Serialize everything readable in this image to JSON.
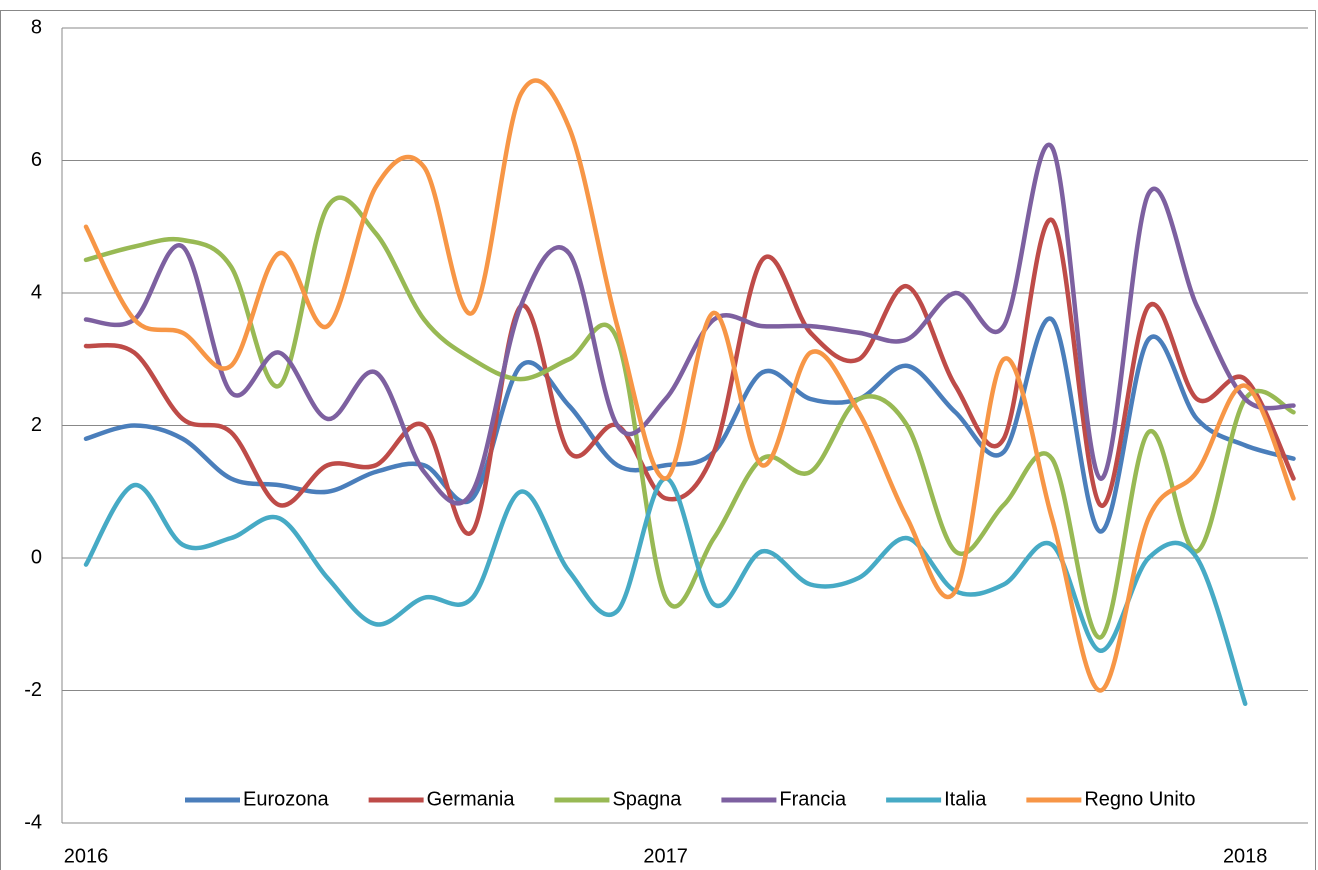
{
  "chart_data": {
    "type": "line",
    "categories": [
      "2016",
      null,
      null,
      null,
      null,
      null,
      null,
      null,
      null,
      null,
      null,
      null,
      "2017",
      null,
      null,
      null,
      null,
      null,
      null,
      null,
      null,
      null,
      null,
      null,
      "2018",
      null
    ],
    "series": [
      {
        "name": "Eurozona",
        "color": "#4a7ebb",
        "values": [
          1.8,
          2.0,
          1.8,
          1.2,
          1.1,
          1.0,
          1.3,
          1.4,
          0.9,
          2.9,
          2.3,
          1.4,
          1.4,
          1.6,
          2.8,
          2.4,
          2.4,
          2.9,
          2.2,
          1.6,
          3.6,
          0.4,
          3.3,
          2.1,
          1.7,
          1.5
        ]
      },
      {
        "name": "Germania",
        "color": "#be4b48",
        "values": [
          3.2,
          3.1,
          2.1,
          1.9,
          0.8,
          1.4,
          1.4,
          2.0,
          0.4,
          3.8,
          1.6,
          2.0,
          0.9,
          1.6,
          4.5,
          3.4,
          3.0,
          4.1,
          2.6,
          1.8,
          5.1,
          0.8,
          3.8,
          2.4,
          2.7,
          1.2
        ]
      },
      {
        "name": "Spagna",
        "color": "#98b954",
        "values": [
          4.5,
          4.7,
          4.8,
          4.4,
          2.6,
          5.3,
          4.9,
          3.6,
          3.0,
          2.7,
          3.0,
          3.3,
          -0.6,
          0.3,
          1.5,
          1.3,
          2.4,
          2.0,
          0.1,
          0.8,
          1.5,
          -1.2,
          1.9,
          0.1,
          2.4,
          2.2
        ]
      },
      {
        "name": "Francia",
        "color": "#7d60a0",
        "values": [
          3.6,
          3.6,
          4.7,
          2.5,
          3.1,
          2.1,
          2.8,
          1.3,
          1.0,
          3.8,
          4.6,
          2.0,
          2.4,
          3.6,
          3.5,
          3.5,
          3.4,
          3.3,
          4.0,
          3.5,
          6.2,
          1.2,
          5.5,
          3.8,
          2.4,
          2.3
        ]
      },
      {
        "name": "Italia",
        "color": "#46aac5",
        "values": [
          -0.1,
          1.1,
          0.2,
          0.3,
          0.6,
          -0.3,
          -1.0,
          -0.6,
          -0.6,
          1.0,
          -0.2,
          -0.8,
          1.2,
          -0.7,
          0.1,
          -0.4,
          -0.3,
          0.3,
          -0.5,
          -0.4,
          0.2,
          -1.4,
          0.0,
          0.0,
          -2.2,
          null
        ]
      },
      {
        "name": "Regno Unito",
        "color": "#f79646",
        "values": [
          5.0,
          3.6,
          3.4,
          2.9,
          4.6,
          3.5,
          5.6,
          5.9,
          3.7,
          7.0,
          6.5,
          3.5,
          1.2,
          3.7,
          1.4,
          3.1,
          2.2,
          0.6,
          -0.5,
          3.0,
          0.6,
          -2.0,
          0.6,
          1.3,
          2.6,
          0.9
        ]
      }
    ],
    "ylim": [
      -4,
      8
    ],
    "yticks": [
      -4,
      -2,
      0,
      2,
      4,
      6,
      8
    ],
    "grid": true,
    "smooth": true,
    "legend": "bottom"
  }
}
